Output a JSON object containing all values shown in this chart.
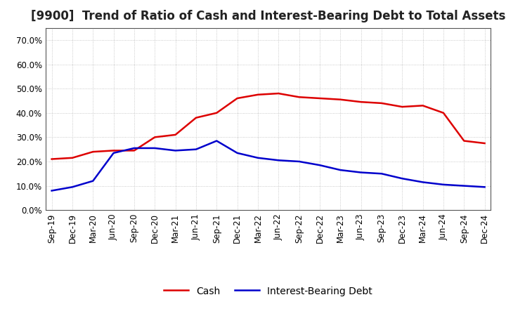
{
  "title": "[9900]  Trend of Ratio of Cash and Interest-Bearing Debt to Total Assets",
  "x_labels": [
    "Sep-19",
    "Dec-19",
    "Mar-20",
    "Jun-20",
    "Sep-20",
    "Dec-20",
    "Mar-21",
    "Jun-21",
    "Sep-21",
    "Dec-21",
    "Mar-22",
    "Jun-22",
    "Sep-22",
    "Dec-22",
    "Mar-23",
    "Jun-23",
    "Sep-23",
    "Dec-23",
    "Mar-24",
    "Jun-24",
    "Sep-24",
    "Dec-24"
  ],
  "cash": [
    0.21,
    0.215,
    0.24,
    0.245,
    0.245,
    0.3,
    0.31,
    0.38,
    0.4,
    0.46,
    0.475,
    0.48,
    0.465,
    0.46,
    0.455,
    0.445,
    0.44,
    0.425,
    0.43,
    0.4,
    0.285,
    0.275
  ],
  "ibd": [
    0.08,
    0.095,
    0.12,
    0.235,
    0.255,
    0.255,
    0.245,
    0.25,
    0.285,
    0.235,
    0.215,
    0.205,
    0.2,
    0.185,
    0.165,
    0.155,
    0.15,
    0.13,
    0.115,
    0.105,
    0.1,
    0.095
  ],
  "ylim": [
    0.0,
    0.75
  ],
  "yticks": [
    0.0,
    0.1,
    0.2,
    0.3,
    0.4,
    0.5,
    0.6,
    0.7
  ],
  "cash_color": "#dd0000",
  "ibd_color": "#0000cc",
  "background_color": "#ffffff",
  "plot_bg_color": "#ffffff",
  "grid_color": "#bbbbbb",
  "legend_cash": "Cash",
  "legend_ibd": "Interest-Bearing Debt",
  "title_fontsize": 12,
  "axis_fontsize": 8.5,
  "legend_fontsize": 10
}
